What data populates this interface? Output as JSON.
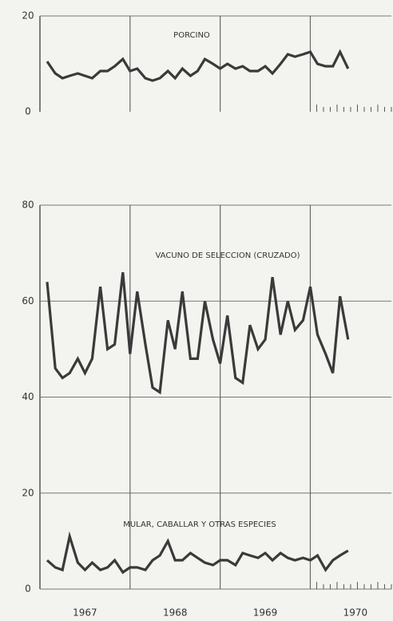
{
  "chart_data": [
    {
      "type": "line",
      "xlim": [
        1967,
        1970.9
      ],
      "ylim": [
        0,
        20
      ],
      "yticks": [
        0,
        20
      ],
      "grid_x": [
        1968,
        1969,
        1970
      ],
      "x": [
        1967.08,
        1967.17,
        1967.25,
        1967.33,
        1967.42,
        1967.5,
        1967.58,
        1967.67,
        1967.75,
        1967.83,
        1967.92,
        1968,
        1968.08,
        1968.17,
        1968.25,
        1968.33,
        1968.42,
        1968.5,
        1968.58,
        1968.67,
        1968.75,
        1968.83,
        1968.92,
        1969,
        1969.08,
        1969.17,
        1969.25,
        1969.33,
        1969.42,
        1969.5,
        1969.58,
        1969.67,
        1969.75,
        1969.83,
        1969.92,
        1970,
        1970.08,
        1970.17,
        1970.25,
        1970.33,
        1970.42
      ],
      "series": [
        {
          "name": "PORCINO",
          "color": "#3a3a3a",
          "values": [
            10.5,
            8,
            7,
            7.5,
            8,
            7.5,
            7,
            8.5,
            8.5,
            9.5,
            11,
            8.5,
            9,
            7,
            6.5,
            7,
            8.5,
            7,
            9,
            7.5,
            8.5,
            11,
            10,
            9,
            10,
            9,
            9.5,
            8.5,
            8.5,
            9.5,
            8,
            10,
            12,
            11.5,
            12,
            12.5,
            10,
            9.5,
            9.5,
            12.5,
            9
          ]
        }
      ]
    },
    {
      "type": "line",
      "xlim": [
        1967,
        1970.9
      ],
      "ylim": [
        0,
        80
      ],
      "yticks": [
        0,
        20,
        40,
        60,
        80
      ],
      "grid": true,
      "grid_x": [
        1968,
        1969,
        1970
      ],
      "xticks": [
        {
          "value": 1967.5,
          "label": "1967"
        },
        {
          "value": 1968.5,
          "label": "1968"
        },
        {
          "value": 1969.5,
          "label": "1969"
        },
        {
          "value": 1970.5,
          "label": "1970"
        }
      ],
      "x": [
        1967.08,
        1967.17,
        1967.25,
        1967.33,
        1967.42,
        1967.5,
        1967.58,
        1967.67,
        1967.75,
        1967.83,
        1967.92,
        1968,
        1968.08,
        1968.17,
        1968.25,
        1968.33,
        1968.42,
        1968.5,
        1968.58,
        1968.67,
        1968.75,
        1968.83,
        1968.92,
        1969,
        1969.08,
        1969.17,
        1969.25,
        1969.33,
        1969.42,
        1969.5,
        1969.58,
        1969.67,
        1969.75,
        1969.83,
        1969.92,
        1970,
        1970.08,
        1970.17,
        1970.25,
        1970.33,
        1970.42
      ],
      "series": [
        {
          "name": "VACUNO DE SELECCION (CRUZADO)",
          "color": "#3a3a3a",
          "values": [
            64,
            46,
            44,
            45,
            48,
            45,
            48,
            63,
            50,
            51,
            66,
            49,
            62,
            51,
            42,
            41,
            56,
            50,
            62,
            48,
            48,
            60,
            52,
            47,
            57,
            44,
            43,
            55,
            50,
            52,
            65,
            53,
            60,
            54,
            56,
            63,
            53,
            49,
            45,
            61,
            52
          ]
        },
        {
          "name": "MULAR, CABALLAR Y OTRAS ESPECIES",
          "color": "#3a3a3a",
          "values": [
            6,
            4.5,
            4,
            11,
            5.5,
            4,
            5.5,
            4,
            4.5,
            6,
            3.5,
            4.5,
            4.5,
            4,
            6,
            7,
            10,
            6,
            6,
            7.5,
            6.5,
            5.5,
            5,
            6,
            6,
            5,
            7.5,
            7,
            6.5,
            7.5,
            6,
            7.5,
            6.5,
            6,
            6.5,
            6,
            7,
            4,
            6,
            7,
            8
          ]
        }
      ]
    }
  ]
}
